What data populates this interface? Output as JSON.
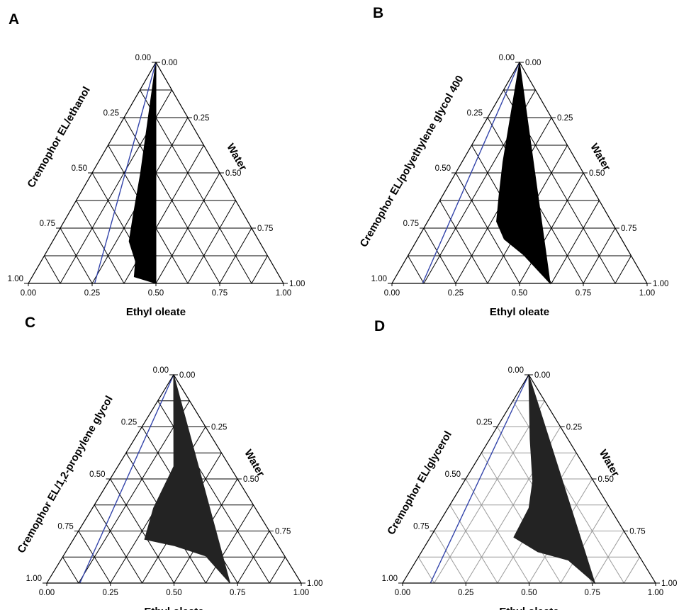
{
  "figure": {
    "tick_values": [
      "0.00",
      "0.25",
      "0.50",
      "0.75",
      "1.00"
    ],
    "panels": [
      {
        "letter": "A",
        "left_axis_label": "Cremophor EL/ethanol",
        "right_axis_label": "Water",
        "bottom_axis_label": "Ethyl oleate",
        "region_color": "#000000",
        "grid_color": "#000000",
        "boundary_line_color": "#3344aa",
        "boundary_line": {
          "from_ethyl_oleate": 0.26,
          "to": "apex"
        },
        "region_boundary_ethyl_oleate_water": [
          [
            0.5,
            0
          ],
          [
            0.4,
            0.03
          ],
          [
            0.37,
            0.1
          ],
          [
            0.3,
            0.19
          ],
          [
            0.26,
            0.3
          ],
          [
            0.19,
            0.5
          ],
          [
            0,
            1
          ]
        ]
      },
      {
        "letter": "B",
        "left_axis_label": "Cremophor EL/polyethylene glycol 400",
        "right_axis_label": "Water",
        "bottom_axis_label": "Ethyl oleate",
        "region_color": "#000000",
        "grid_color": "#000000",
        "boundary_line_color": "#3344aa",
        "boundary_line": {
          "from_ethyl_oleate": 0.12,
          "to": "apex"
        },
        "region_boundary_ethyl_oleate_water": [
          [
            0.62,
            0
          ],
          [
            0.45,
            0.13
          ],
          [
            0.34,
            0.2
          ],
          [
            0.27,
            0.28
          ],
          [
            0.22,
            0.4
          ],
          [
            0.16,
            0.55
          ],
          [
            0,
            1
          ]
        ]
      },
      {
        "letter": "C",
        "left_axis_label": "Cremophor EL/1,2-propylene glycol",
        "right_axis_label": "Water",
        "bottom_axis_label": "Ethyl oleate",
        "region_color": "#232323",
        "grid_color": "#000000",
        "boundary_line_color": "#3344aa",
        "boundary_line": {
          "from_ethyl_oleate": 0.13,
          "to": "apex"
        },
        "region_boundary_ethyl_oleate_water": [
          [
            0.72,
            0
          ],
          [
            0.56,
            0.13
          ],
          [
            0.41,
            0.18
          ],
          [
            0.28,
            0.21
          ],
          [
            0.24,
            0.36
          ],
          [
            0.22,
            0.56
          ],
          [
            0.12,
            0.76
          ],
          [
            0,
            1
          ]
        ]
      },
      {
        "letter": "D",
        "left_axis_label": "Cremophor EL/glycerol",
        "right_axis_label": "Water",
        "bottom_axis_label": "Ethyl oleate",
        "region_color": "#232323",
        "grid_color": "#9a9a9a",
        "boundary_line_color": "#3344aa",
        "boundary_line": {
          "from_ethyl_oleate": 0.11,
          "to": "apex"
        },
        "region_boundary_ethyl_oleate_water": [
          [
            0.76,
            0
          ],
          [
            0.6,
            0.11
          ],
          [
            0.46,
            0.15
          ],
          [
            0.33,
            0.22
          ],
          [
            0.32,
            0.36
          ],
          [
            0.27,
            0.49
          ],
          [
            0.16,
            0.69
          ],
          [
            0,
            1
          ]
        ]
      }
    ]
  }
}
